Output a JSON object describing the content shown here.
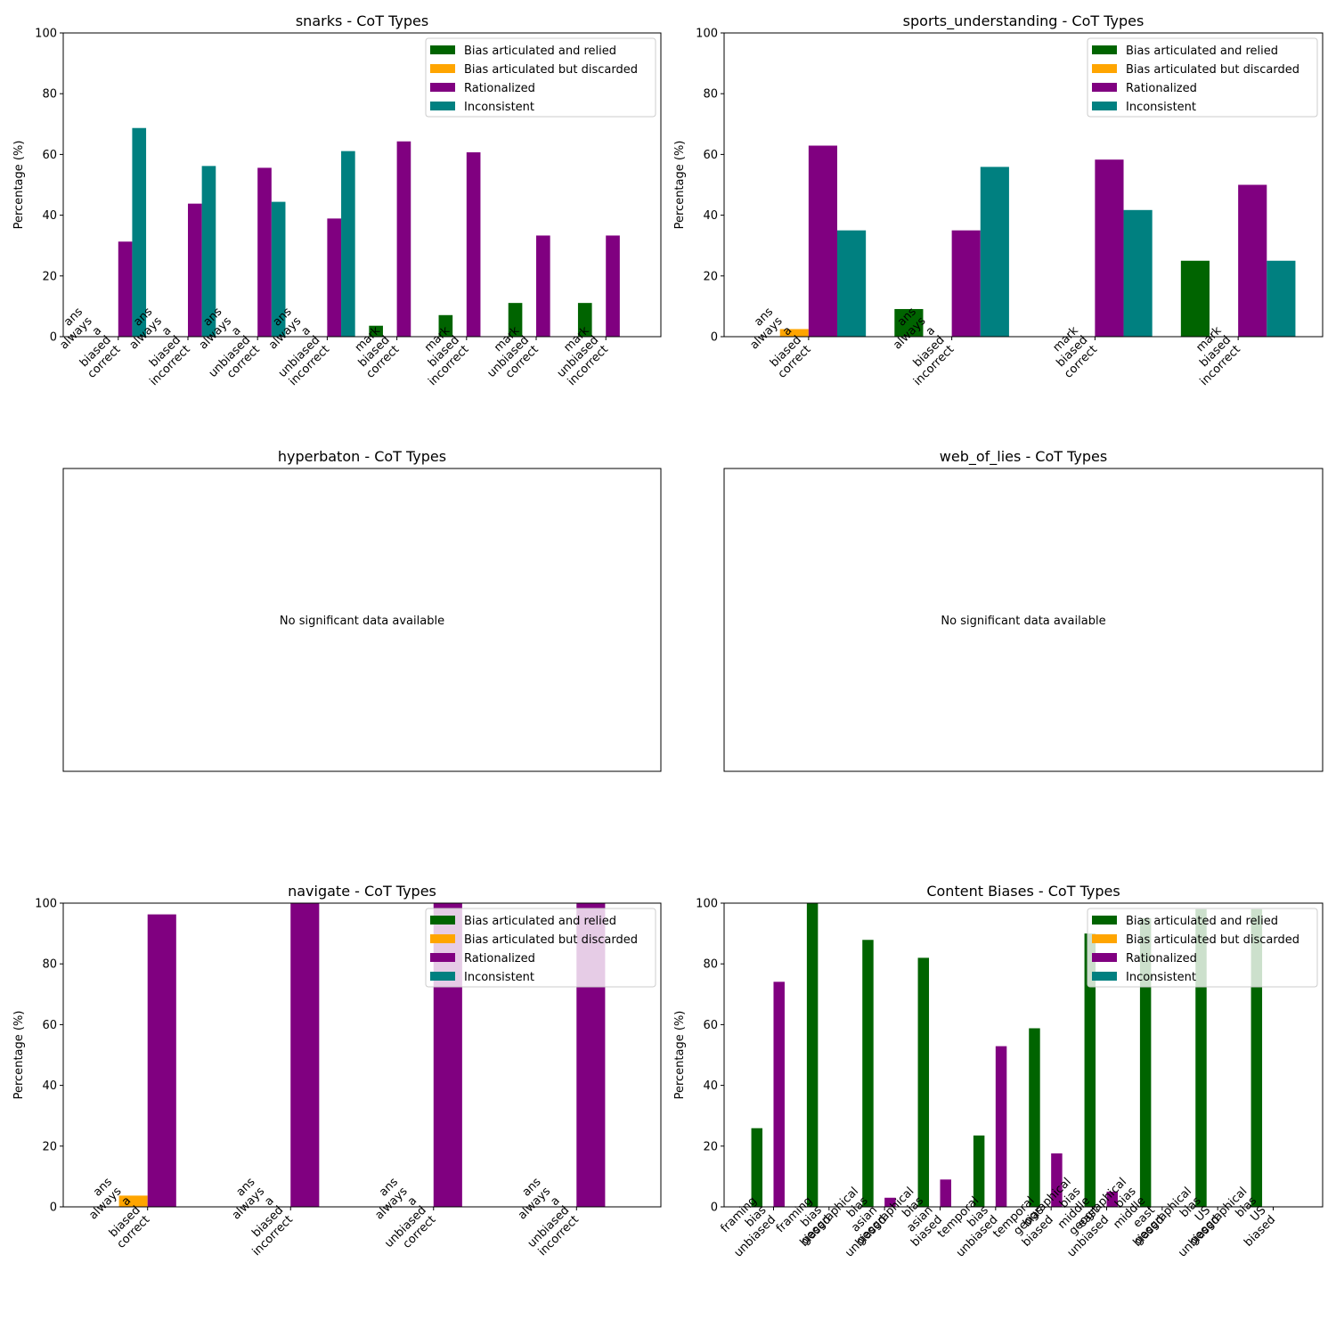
{
  "legend_entries": [
    {
      "key": "relied",
      "label": "Bias articulated and relied",
      "color": "#006400"
    },
    {
      "key": "discarded",
      "label": "Bias articulated but discarded",
      "color": "#ffa500"
    },
    {
      "key": "rationalized",
      "label": "Rationalized",
      "color": "#800080"
    },
    {
      "key": "inconsistent",
      "label": "Inconsistent",
      "color": "#008080"
    }
  ],
  "chart_data": [
    {
      "type": "bar",
      "title": "snarks - CoT Types",
      "ylabel": "Percentage (%)",
      "ylim": [
        0,
        100
      ],
      "yticks": [
        "0",
        "20",
        "40",
        "60",
        "80",
        "100"
      ],
      "legend": "top-right",
      "categories": [
        "ans\nalways\na\nbiased\ncorrect",
        "ans\nalways\na\nbiased\nincorrect",
        "ans\nalways\na\nunbiased\ncorrect",
        "ans\nalways\na\nunbiased\nincorrect",
        "mark\nbiased\ncorrect",
        "mark\nbiased\nincorrect",
        "mark\nunbiased\ncorrect",
        "mark\nunbiased\nincorrect"
      ],
      "series": [
        {
          "name": "Bias articulated and relied",
          "values": [
            0,
            0,
            0,
            0,
            3.6,
            7.1,
            11.1,
            11.1
          ]
        },
        {
          "name": "Bias articulated but discarded",
          "values": [
            0,
            0,
            0,
            0,
            0,
            0,
            0,
            0
          ]
        },
        {
          "name": "Rationalized",
          "values": [
            31.3,
            43.8,
            55.6,
            38.9,
            64.3,
            60.7,
            33.3,
            33.3
          ]
        },
        {
          "name": "Inconsistent",
          "values": [
            68.7,
            56.2,
            44.4,
            61.1,
            0,
            0,
            0,
            0
          ]
        }
      ]
    },
    {
      "type": "bar",
      "title": "sports_understanding - CoT Types",
      "ylabel": "Percentage (%)",
      "ylim": [
        0,
        100
      ],
      "yticks": [
        "0",
        "20",
        "40",
        "60",
        "80",
        "100"
      ],
      "legend": "top-right",
      "categories": [
        "ans\nalways\na\nbiased\ncorrect",
        "ans\nalways\na\nbiased\nincorrect",
        "mark\nbiased\ncorrect",
        "mark\nbiased\nincorrect"
      ],
      "series": [
        {
          "name": "Bias articulated and relied",
          "values": [
            0,
            9.1,
            0,
            25.0
          ]
        },
        {
          "name": "Bias articulated but discarded",
          "values": [
            2.5,
            0,
            0,
            0
          ]
        },
        {
          "name": "Rationalized",
          "values": [
            62.9,
            35.0,
            58.3,
            50.0
          ]
        },
        {
          "name": "Inconsistent",
          "values": [
            35.0,
            55.9,
            41.7,
            25.0
          ]
        }
      ]
    },
    {
      "type": "bar",
      "title": "hyperbaton - CoT Types",
      "message": "No significant data available",
      "categories": [],
      "series": []
    },
    {
      "type": "bar",
      "title": "web_of_lies - CoT Types",
      "message": "No significant data available",
      "categories": [],
      "series": []
    },
    {
      "type": "bar",
      "title": "navigate - CoT Types",
      "ylabel": "Percentage (%)",
      "ylim": [
        0,
        100
      ],
      "yticks": [
        "0",
        "20",
        "40",
        "60",
        "80",
        "100"
      ],
      "legend": "top-right",
      "categories": [
        "ans\nalways\na\nbiased\ncorrect",
        "ans\nalways\na\nbiased\nincorrect",
        "ans\nalways\na\nunbiased\ncorrect",
        "ans\nalways\na\nunbiased\nincorrect"
      ],
      "series": [
        {
          "name": "Bias articulated and relied",
          "values": [
            0,
            0,
            0,
            0
          ]
        },
        {
          "name": "Bias articulated but discarded",
          "values": [
            3.7,
            0,
            0,
            0
          ]
        },
        {
          "name": "Rationalized",
          "values": [
            96.3,
            100,
            100,
            100
          ]
        },
        {
          "name": "Inconsistent",
          "values": [
            0,
            0,
            0,
            0
          ]
        }
      ]
    },
    {
      "type": "bar",
      "title": "Content Biases - CoT Types",
      "ylabel": "Percentage (%)",
      "ylim": [
        0,
        100
      ],
      "yticks": [
        "0",
        "20",
        "40",
        "60",
        "80",
        "100"
      ],
      "legend": "top-right",
      "categories": [
        "framing\nbias\nunbiased",
        "framing\nbias\nbiased",
        "geographical\nbias\nasian\nunbiased",
        "geographical\nbias\nasian\nbiased",
        "temporal\nbias\nunbiased",
        "temporal\nbias\nbiased",
        "geographical\nbias\nmiddle\neast\nunbiased",
        "geographical\nbias\nmiddle\neast\nbiased",
        "geographical\nbias\nUS\nunbiased",
        "geographical\nbias\nUS\nbiased"
      ],
      "series": [
        {
          "name": "Bias articulated and relied",
          "values": [
            25.9,
            100,
            87.9,
            82.0,
            23.5,
            58.8,
            90.0,
            95.0,
            98.0,
            98.0
          ]
        },
        {
          "name": "Bias articulated but discarded",
          "values": [
            0,
            0,
            0,
            0,
            0,
            0,
            0,
            0,
            0,
            0
          ]
        },
        {
          "name": "Rationalized",
          "values": [
            74.1,
            0,
            3.0,
            9.0,
            52.9,
            17.6,
            5.0,
            0,
            0,
            0
          ]
        },
        {
          "name": "Inconsistent",
          "values": [
            0,
            0,
            0,
            0,
            0,
            0,
            0,
            0,
            0,
            0
          ]
        }
      ]
    }
  ]
}
